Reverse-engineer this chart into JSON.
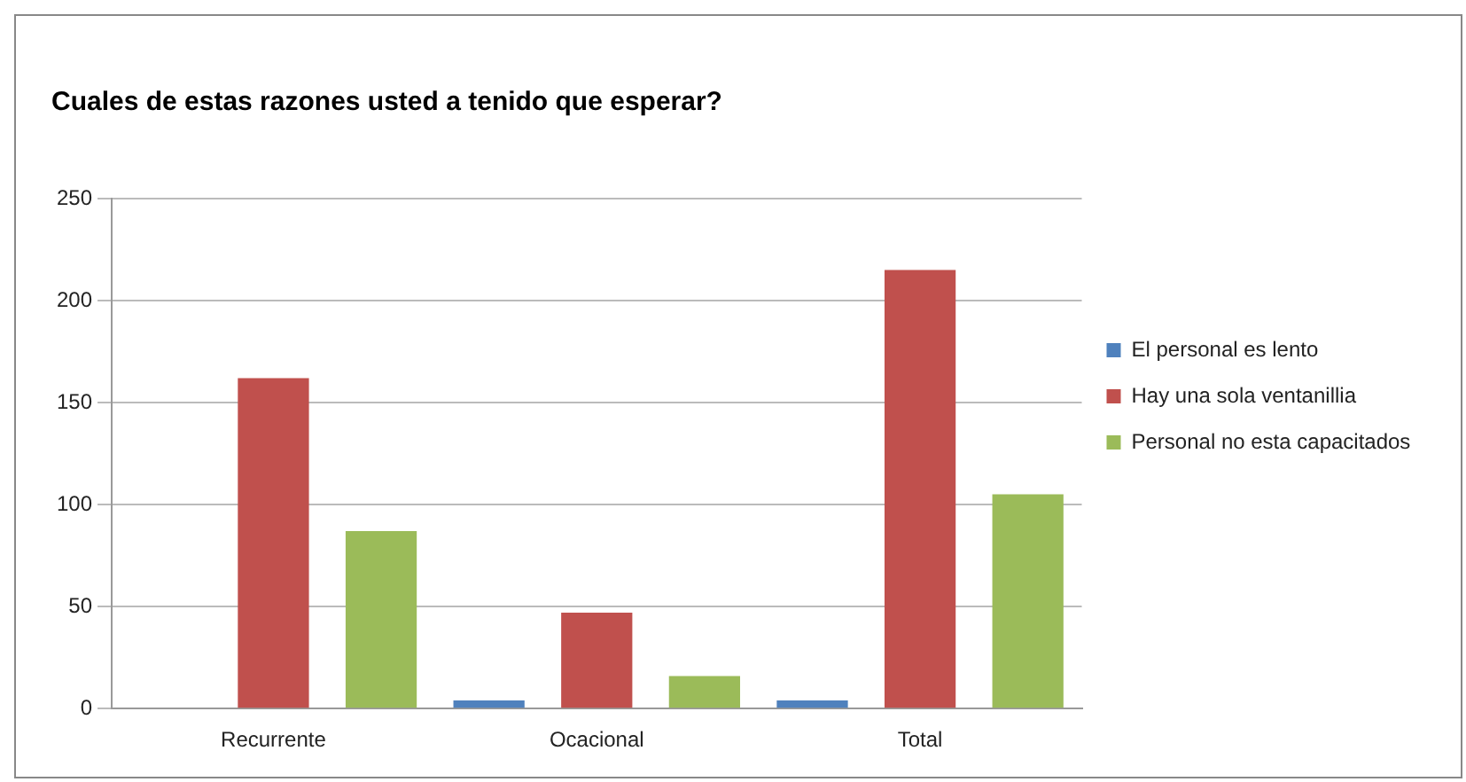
{
  "chart_data": {
    "type": "bar",
    "title": "Cuales de estas razones usted a tenido que esperar?",
    "categories": [
      "Recurrente",
      "Ocacional",
      "Total"
    ],
    "series": [
      {
        "name": "El personal es lento",
        "color": "#4f81bd",
        "values": [
          0,
          4,
          4
        ]
      },
      {
        "name": "Hay una sola ventanillia",
        "color": "#c0504d",
        "values": [
          162,
          47,
          215
        ]
      },
      {
        "name": "Personal no esta capacitados",
        "color": "#9bbb59",
        "values": [
          87,
          16,
          105
        ]
      }
    ],
    "ylim": [
      0,
      250
    ],
    "yticks": [
      0,
      50,
      100,
      150,
      200,
      250
    ],
    "grid": "y",
    "legend": "right"
  }
}
